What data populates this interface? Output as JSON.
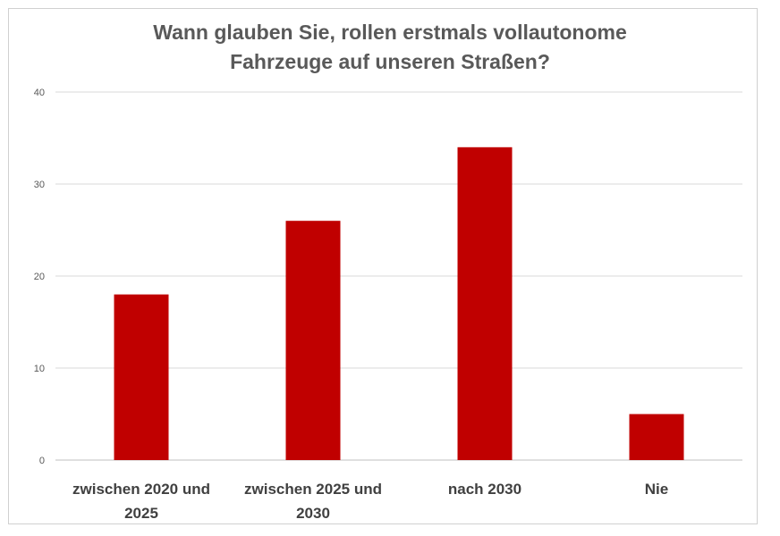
{
  "chart_data": {
    "type": "bar",
    "title_lines": [
      "Wann glauben Sie, rollen erstmals vollautonome",
      "Fahrzeuge auf unseren Straßen?"
    ],
    "categories": [
      [
        "zwischen 2020 und",
        "2025"
      ],
      [
        "zwischen 2025 und",
        "2030"
      ],
      [
        "nach 2030"
      ],
      [
        "Nie"
      ]
    ],
    "values": [
      18,
      26,
      34,
      5
    ],
    "ylim": [
      0,
      40
    ],
    "yticks": [
      0,
      10,
      20,
      30,
      40
    ],
    "grid": true,
    "bar_color": "#c00000",
    "xlabel": "",
    "ylabel": ""
  }
}
